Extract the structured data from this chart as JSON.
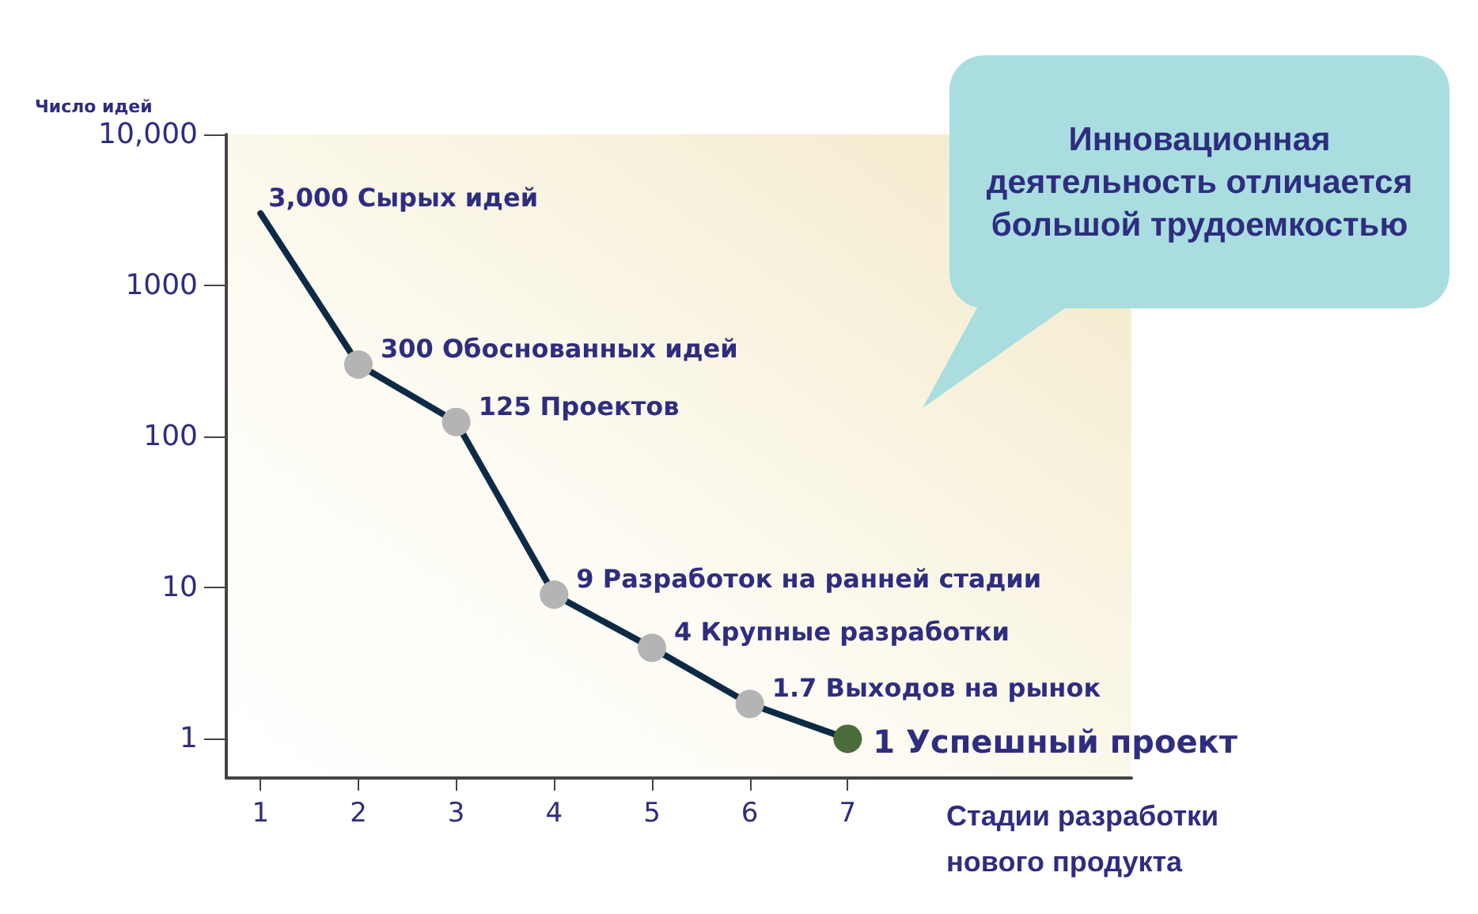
{
  "chart_data": {
    "type": "line",
    "xlabel": "Стадии разработки нового продукта",
    "ylabel": "Число идей",
    "annotations": [
      "Инновационная деятельность отличается большой трудоемкостью"
    ],
    "x": [
      1,
      2,
      3,
      4,
      5,
      6,
      7
    ],
    "series": [
      {
        "color": "#0d2a45",
        "values": [
          3000,
          300,
          125,
          9,
          4,
          1.7,
          1
        ],
        "colors": [
          null,
          "#b4b4b4",
          "#b4b4b4",
          "#b4b4b4",
          "#b4b4b4",
          "#b4b4b4",
          "#4a6b3a"
        ],
        "value_labels": [
          "3,000 Сырых идей",
          "300 Обоснованных идей",
          "125 Проектов",
          "9 Разработок на ранней стадии",
          "4 Крупные разработки",
          "1.7 Выходов на рынок",
          "1 Успешный проект"
        ]
      }
    ],
    "xlim": [
      0.65,
      9.9
    ],
    "xticks": [
      1,
      2,
      3,
      4,
      5,
      6,
      7
    ],
    "ylim": [
      0.55,
      10000
    ],
    "yticks": [
      {
        "value": 10000,
        "label": "10,000"
      },
      1000,
      100,
      10,
      1
    ],
    "log": true,
    "grid": false,
    "marker": "circle",
    "line_style": "solid"
  }
}
